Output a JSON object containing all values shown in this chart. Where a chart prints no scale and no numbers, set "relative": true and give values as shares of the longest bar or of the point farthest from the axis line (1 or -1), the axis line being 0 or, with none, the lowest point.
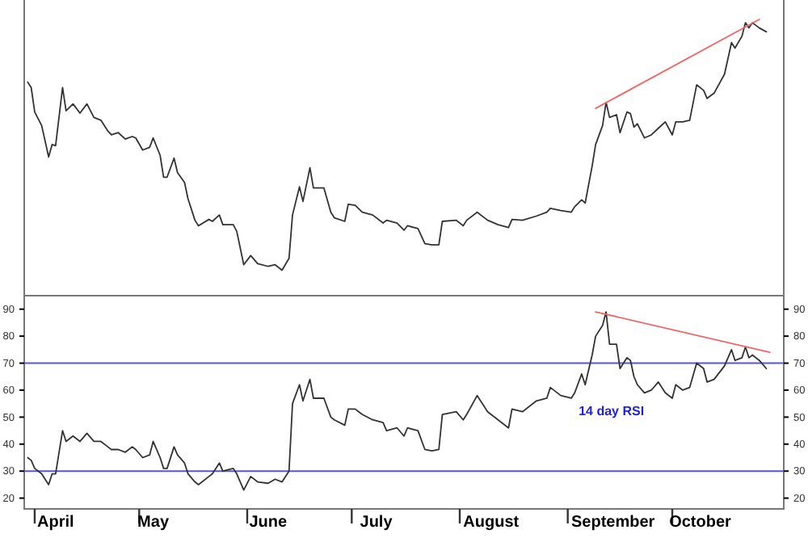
{
  "chart_data": [
    {
      "type": "line",
      "relative": true,
      "xlim": [
        "--03-29",
        "--11-02"
      ],
      "x": [
        "--03-30",
        "--03-31",
        "--04-01",
        "--04-03",
        "--04-05",
        "--04-06",
        "--04-07",
        "--04-09",
        "--04-10",
        "--04-12",
        "--04-14",
        "--04-16",
        "--04-18",
        "--04-20",
        "--04-22",
        "--04-23",
        "--04-25",
        "--04-27",
        "--04-29",
        "--04-30",
        "--05-02",
        "--05-04",
        "--05-05",
        "--05-07",
        "--05-08",
        "--05-09",
        "--05-11",
        "--05-12",
        "--05-14",
        "--05-15",
        "--05-17",
        "--05-18",
        "--05-21",
        "--05-22",
        "--05-24",
        "--05-25",
        "--05-28",
        "--05-29",
        "--05-31",
        "--06-02",
        "--06-04",
        "--06-07",
        "--06-09",
        "--06-11",
        "--06-13",
        "--06-14",
        "--06-16",
        "--06-17",
        "--06-19",
        "--06-20",
        "--06-23",
        "--06-25",
        "--06-26",
        "--06-29",
        "--06-30",
        "--07-02",
        "--07-04",
        "--07-07",
        "--07-10",
        "--07-11",
        "--07-14",
        "--07-16",
        "--07-17",
        "--07-20",
        "--07-22",
        "--07-24",
        "--07-26",
        "--07-27",
        "--07-31",
        "--08-02",
        "--08-03",
        "--08-06",
        "--08-09",
        "--08-12",
        "--08-15",
        "--08-16",
        "--08-19",
        "--08-23",
        "--08-26",
        "--08-27",
        "--08-30",
        "--09-02",
        "--09-03",
        "--09-05",
        "--09-06",
        "--09-08",
        "--09-09",
        "--09-11",
        "--09-12",
        "--09-13",
        "--09-15",
        "--09-16",
        "--09-18",
        "--09-19",
        "--09-20",
        "--09-21",
        "--09-23",
        "--09-25",
        "--09-27",
        "--09-29",
        "--10-01",
        "--10-02",
        "--10-04",
        "--10-06",
        "--10-08",
        "--10-10",
        "--10-11",
        "--10-13",
        "--10-16",
        "--10-18",
        "--10-19",
        "--10-21",
        "--10-22",
        "--10-23",
        "--10-24",
        "--10-26",
        "--10-28"
      ],
      "series": [
        {
          "color": "#333333",
          "values": [
            0.773,
            0.753,
            0.665,
            0.616,
            0.502,
            0.547,
            0.543,
            0.753,
            0.669,
            0.694,
            0.661,
            0.694,
            0.645,
            0.635,
            0.596,
            0.582,
            0.59,
            0.567,
            0.576,
            0.571,
            0.527,
            0.537,
            0.571,
            0.508,
            0.429,
            0.429,
            0.498,
            0.445,
            0.41,
            0.351,
            0.273,
            0.253,
            0.276,
            0.269,
            0.292,
            0.257,
            0.257,
            0.233,
            0.112,
            0.145,
            0.116,
            0.106,
            0.112,
            0.092,
            0.135,
            0.292,
            0.394,
            0.341,
            0.463,
            0.39,
            0.39,
            0.302,
            0.282,
            0.269,
            0.331,
            0.327,
            0.302,
            0.292,
            0.263,
            0.273,
            0.263,
            0.237,
            0.253,
            0.243,
            0.188,
            0.184,
            0.184,
            0.269,
            0.273,
            0.253,
            0.273,
            0.302,
            0.273,
            0.257,
            0.247,
            0.276,
            0.273,
            0.288,
            0.302,
            0.316,
            0.308,
            0.302,
            0.322,
            0.347,
            0.335,
            0.469,
            0.547,
            0.616,
            0.7,
            0.645,
            0.655,
            0.59,
            0.665,
            0.659,
            0.61,
            0.622,
            0.571,
            0.582,
            0.606,
            0.629,
            0.582,
            0.629,
            0.629,
            0.635,
            0.763,
            0.743,
            0.714,
            0.733,
            0.802,
            0.916,
            0.896,
            0.939,
            0.988,
            0.969,
            0.988,
            0.969,
            0.955
          ]
        },
        {
          "type": "line",
          "color": "#ee6666",
          "x": [
            "--09-09",
            "--10-26"
          ],
          "values": [
            0.678,
            1
          ]
        }
      ]
    },
    {
      "type": "line",
      "xlim": [
        "--03-29",
        "--11-02"
      ],
      "ylim": [
        16,
        95
      ],
      "yticks": [
        20,
        30,
        40,
        50,
        60,
        70,
        80,
        90
      ],
      "y2lim": [
        16,
        95
      ],
      "y2ticks": [
        20,
        30,
        40,
        50,
        60,
        70,
        80,
        90
      ],
      "xticks": [
        {
          "value": "--04-01",
          "label": null
        },
        {
          "value": "--05-01",
          "label": null
        },
        {
          "value": "--06-01",
          "label": null
        },
        {
          "value": "--07-01",
          "label": null
        },
        {
          "value": "--08-01",
          "label": null
        },
        {
          "value": "--09-01",
          "label": null
        },
        {
          "value": "--10-01",
          "label": null
        },
        {
          "value": "--04-07",
          "label": "April"
        },
        {
          "value": "--05-05",
          "label": "May"
        },
        {
          "value": "--06-07",
          "label": "June"
        },
        {
          "value": "--07-08",
          "label": "July"
        },
        {
          "value": "--08-10",
          "label": "August"
        },
        {
          "value": "--09-14",
          "label": "September"
        },
        {
          "value": "--10-09",
          "label": "October"
        }
      ],
      "annotations": [
        "14 day RSI"
      ],
      "ref_lines": [
        {
          "axis": "y",
          "value": 70,
          "color": "#5555dd"
        },
        {
          "axis": "y",
          "value": 30,
          "color": "#5555dd"
        }
      ],
      "x": [
        "--03-30",
        "--03-31",
        "--04-01",
        "--04-03",
        "--04-05",
        "--04-06",
        "--04-07",
        "--04-09",
        "--04-10",
        "--04-12",
        "--04-14",
        "--04-16",
        "--04-18",
        "--04-20",
        "--04-22",
        "--04-23",
        "--04-25",
        "--04-27",
        "--04-29",
        "--04-30",
        "--05-02",
        "--05-04",
        "--05-05",
        "--05-07",
        "--05-08",
        "--05-09",
        "--05-11",
        "--05-12",
        "--05-14",
        "--05-15",
        "--05-17",
        "--05-18",
        "--05-21",
        "--05-22",
        "--05-24",
        "--05-25",
        "--05-28",
        "--05-29",
        "--05-31",
        "--06-02",
        "--06-04",
        "--06-07",
        "--06-09",
        "--06-11",
        "--06-13",
        "--06-14",
        "--06-16",
        "--06-17",
        "--06-19",
        "--06-20",
        "--06-23",
        "--06-25",
        "--06-26",
        "--06-29",
        "--06-30",
        "--07-02",
        "--07-04",
        "--07-07",
        "--07-10",
        "--07-11",
        "--07-14",
        "--07-16",
        "--07-17",
        "--07-20",
        "--07-22",
        "--07-24",
        "--07-26",
        "--07-27",
        "--07-31",
        "--08-02",
        "--08-03",
        "--08-06",
        "--08-09",
        "--08-12",
        "--08-15",
        "--08-16",
        "--08-19",
        "--08-23",
        "--08-26",
        "--08-27",
        "--08-30",
        "--09-02",
        "--09-03",
        "--09-05",
        "--09-06",
        "--09-08",
        "--09-09",
        "--09-11",
        "--09-12",
        "--09-13",
        "--09-15",
        "--09-16",
        "--09-18",
        "--09-19",
        "--09-20",
        "--09-21",
        "--09-23",
        "--09-25",
        "--09-27",
        "--09-29",
        "--10-01",
        "--10-02",
        "--10-04",
        "--10-06",
        "--10-08",
        "--10-10",
        "--10-11",
        "--10-13",
        "--10-16",
        "--10-18",
        "--10-19",
        "--10-21",
        "--10-22",
        "--10-23",
        "--10-24",
        "--10-26",
        "--10-28"
      ],
      "series": [
        {
          "color": "#333333",
          "values": [
            35,
            34,
            31,
            29,
            25,
            29,
            29,
            45,
            41,
            43,
            41,
            44,
            41,
            41,
            39,
            38,
            38,
            37,
            39,
            38,
            35,
            36,
            41,
            35,
            31,
            31,
            39,
            36,
            33,
            29,
            26,
            25,
            28,
            29,
            33,
            30,
            31,
            29,
            23,
            28,
            26,
            25.5,
            27,
            26,
            30,
            55,
            62,
            56,
            64,
            57,
            57,
            50,
            49,
            47,
            53,
            53,
            51,
            49,
            48,
            45,
            46,
            43,
            46,
            45,
            38,
            37.5,
            38,
            51,
            52,
            49,
            51,
            58,
            52,
            49,
            46,
            53,
            52,
            56,
            57,
            61,
            58,
            57,
            59,
            66,
            62,
            73,
            80,
            84,
            89,
            77,
            77,
            68,
            72,
            71,
            65,
            62,
            59,
            60,
            63,
            59,
            57,
            62,
            60,
            61,
            70,
            68,
            63,
            64,
            69,
            75,
            71,
            72,
            76,
            72,
            73,
            71,
            68
          ]
        },
        {
          "type": "line",
          "color": "#ee6666",
          "x": [
            "--09-09",
            "--10-29"
          ],
          "values": [
            89,
            74
          ]
        }
      ]
    }
  ]
}
